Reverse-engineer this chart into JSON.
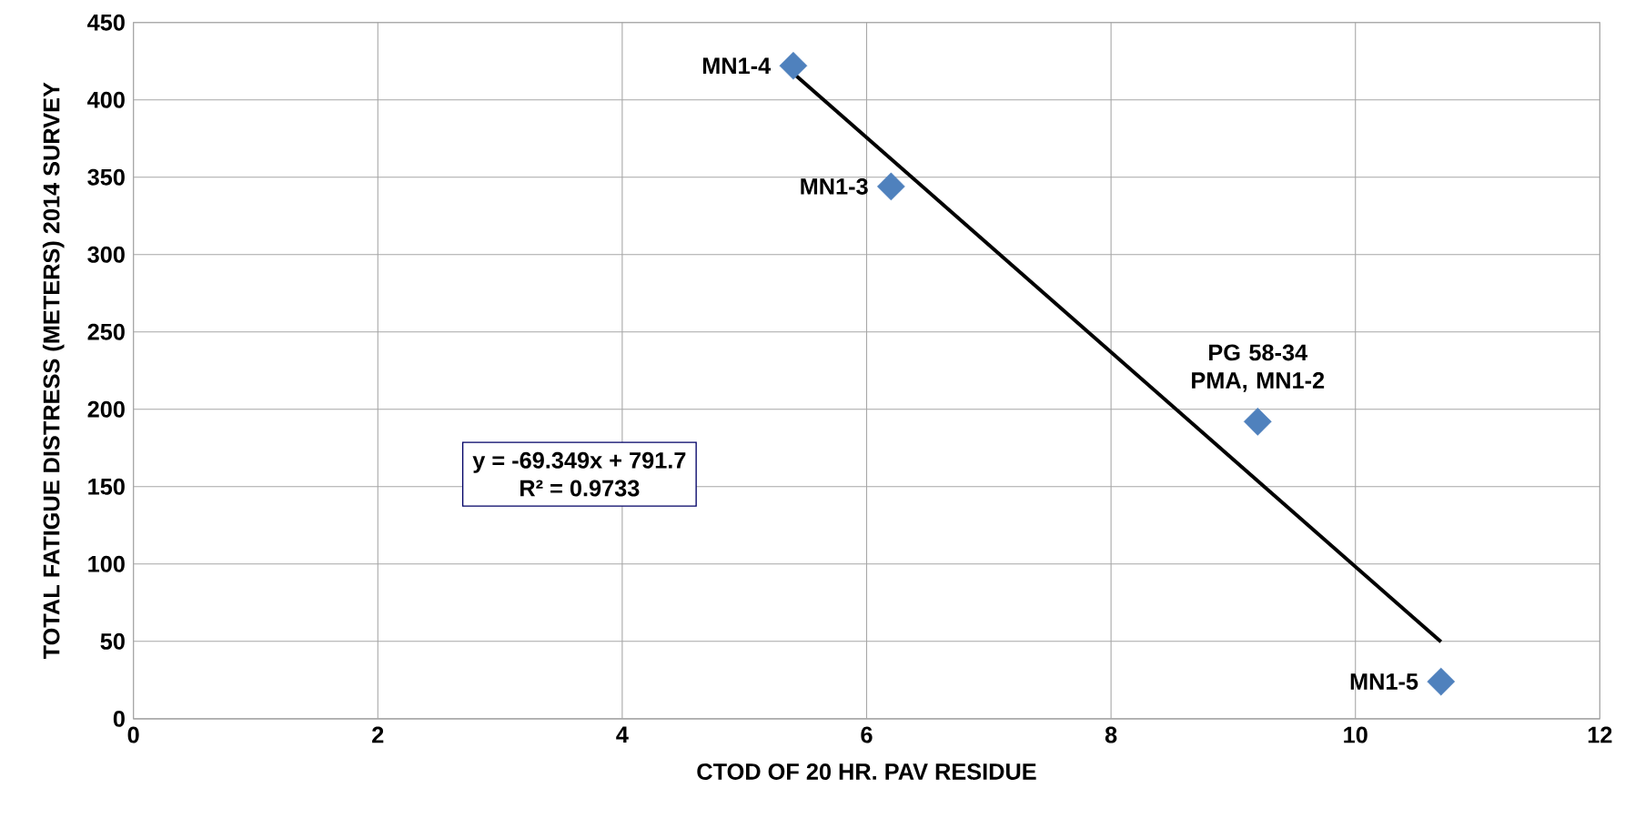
{
  "chart_data": {
    "type": "scatter",
    "xlabel": "CTOD OF 20 HR. PAV RESIDUE",
    "ylabel": "TOTAL FATIGUE DISTRESS (METERS) 2014 SURVEY",
    "xlim": [
      0,
      12
    ],
    "xticks": [
      0,
      2,
      4,
      6,
      8,
      10,
      12
    ],
    "ylim": [
      0,
      450
    ],
    "yticks": [
      0,
      50,
      100,
      150,
      200,
      250,
      300,
      350,
      400,
      450
    ],
    "grid": true,
    "series": [
      {
        "marker": "diamond",
        "color": "#4f81bd",
        "x": [
          5.4,
          6.2,
          9.2,
          10.7
        ],
        "values": [
          422,
          344,
          192,
          24
        ]
      },
      {
        "type": "line",
        "marker": "none",
        "color": "#000000",
        "x": [
          5.4,
          10.7
        ],
        "values": [
          417.2,
          49.7
        ]
      }
    ],
    "annotations": [
      {
        "text": "MN1-4",
        "x": 5.4,
        "y": 422
      },
      {
        "text": "MN1-3",
        "x": 6.2,
        "y": 344
      },
      {
        "text": "PG 58-34 PMA, MN1-2",
        "x": 9.2,
        "y": 192
      },
      {
        "text": "MN1-5",
        "x": 10.7,
        "y": 24
      },
      "y = -69.349x + 791.7",
      "R² = 0.9733"
    ]
  }
}
